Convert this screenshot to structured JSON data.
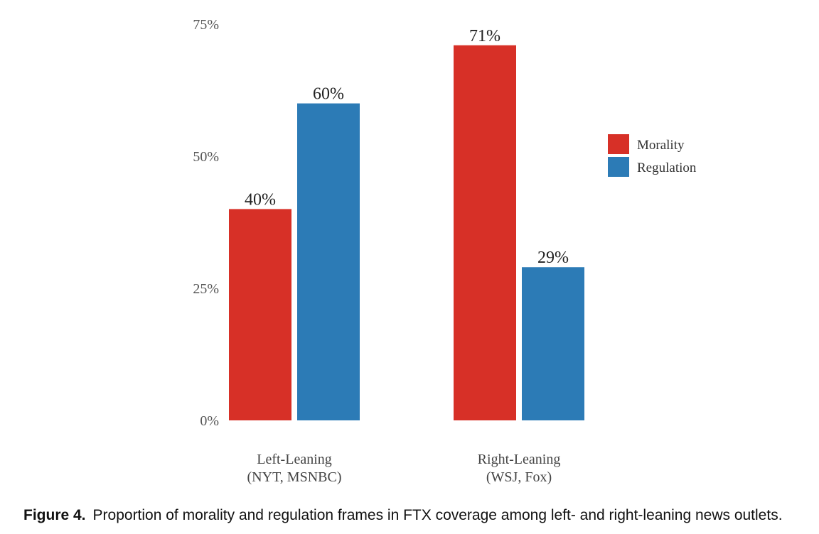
{
  "chart_data": {
    "type": "bar",
    "categories": [
      [
        "Left-Leaning",
        "(NYT, MSNBC)"
      ],
      [
        "Right-Leaning",
        "(WSJ, Fox)"
      ]
    ],
    "series": [
      {
        "name": "Morality",
        "color": "#d73027",
        "values": [
          40,
          71
        ],
        "labels": [
          "40%",
          "71%"
        ]
      },
      {
        "name": "Regulation",
        "color": "#2c7bb6",
        "values": [
          60,
          29
        ],
        "labels": [
          "60%",
          "29%"
        ]
      }
    ],
    "yticks": [
      0,
      25,
      50,
      75
    ],
    "ytick_labels": [
      "0%",
      "25%",
      "50%",
      "75%"
    ],
    "ylim": [
      0,
      75
    ],
    "grid": false,
    "legend_position": "right"
  },
  "caption": {
    "label": "Figure 4.",
    "text": "Proportion of morality and regulation frames in FTX coverage among left- and right-leaning news outlets."
  }
}
